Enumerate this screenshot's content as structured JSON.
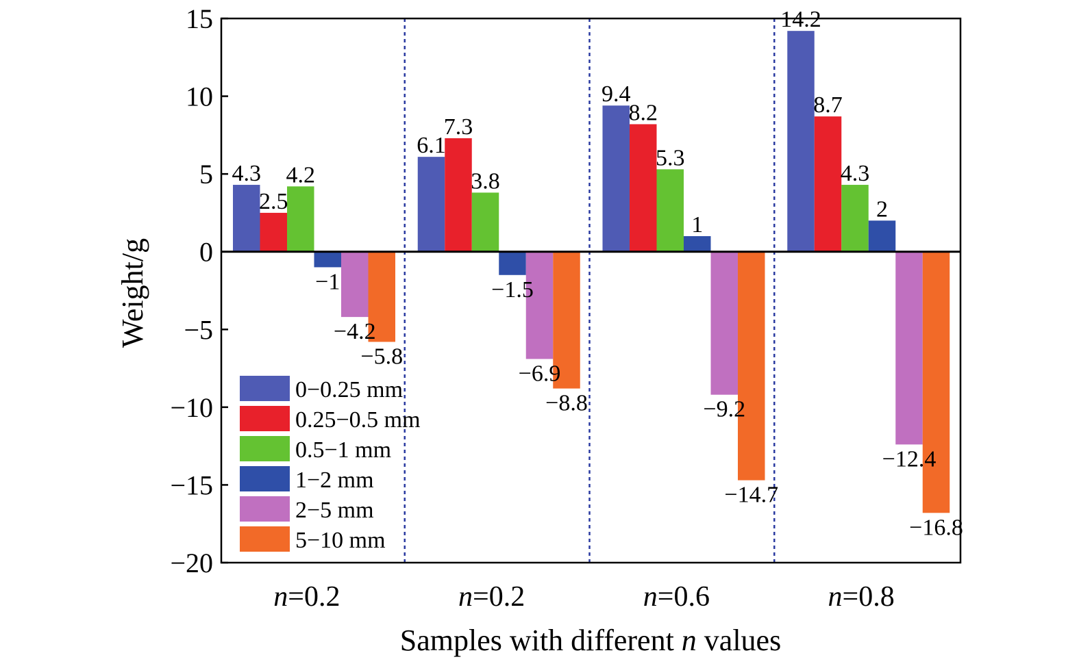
{
  "chart_data": {
    "type": "bar",
    "title": "",
    "xlabel": "Samples with different n values",
    "xlabel_prefix": "Samples with different ",
    "xlabel_var": "n",
    "xlabel_suffix": " values",
    "ylabel": "Weight/g",
    "ylim": [
      -20,
      15
    ],
    "yticks": [
      15,
      10,
      5,
      0,
      -5,
      -10,
      -15,
      -20
    ],
    "ytick_labels": [
      "15",
      "10",
      "5",
      "0",
      "−5",
      "−10",
      "−15",
      "−20"
    ],
    "grid": false,
    "legend_position": "bottom-left",
    "categories": [
      "n=0.2",
      "n=0.2",
      "n=0.6",
      "n=0.8"
    ],
    "category_var": "n",
    "category_values": [
      "=0.2",
      "=0.2",
      "=0.6",
      "=0.8"
    ],
    "series": [
      {
        "name": "0−0.25 mm",
        "color": "#4f5bb4",
        "values": [
          4.3,
          6.1,
          9.4,
          14.2
        ],
        "labels": [
          "4.3",
          "6.1",
          "9.4",
          "14.2"
        ]
      },
      {
        "name": "0.25−0.5 mm",
        "color": "#e8212b",
        "values": [
          2.5,
          7.3,
          8.2,
          8.7
        ],
        "labels": [
          "2.5",
          "7.3",
          "8.2",
          "8.7"
        ]
      },
      {
        "name": "0.5−1 mm",
        "color": "#64c232",
        "values": [
          4.2,
          3.8,
          5.3,
          4.3
        ],
        "labels": [
          "4.2",
          "3.8",
          "5.3",
          "4.3"
        ]
      },
      {
        "name": "1−2 mm",
        "color": "#2f4fa8",
        "values": [
          -1,
          -1.5,
          1,
          2
        ],
        "labels": [
          "−1",
          "−1.5",
          "1",
          "2"
        ]
      },
      {
        "name": "2−5 mm",
        "color": "#c070c0",
        "values": [
          -4.2,
          -6.9,
          -9.2,
          -12.4
        ],
        "labels": [
          "−4.2",
          "−6.9",
          "−9.2",
          "−12.4"
        ]
      },
      {
        "name": "5−10 mm",
        "color": "#f26a28",
        "values": [
          -5.8,
          -8.8,
          -14.7,
          -16.8
        ],
        "labels": [
          "−5.8",
          "−8.8",
          "−14.7",
          "−16.8"
        ]
      }
    ],
    "separator_color": "#2a3aa0"
  }
}
